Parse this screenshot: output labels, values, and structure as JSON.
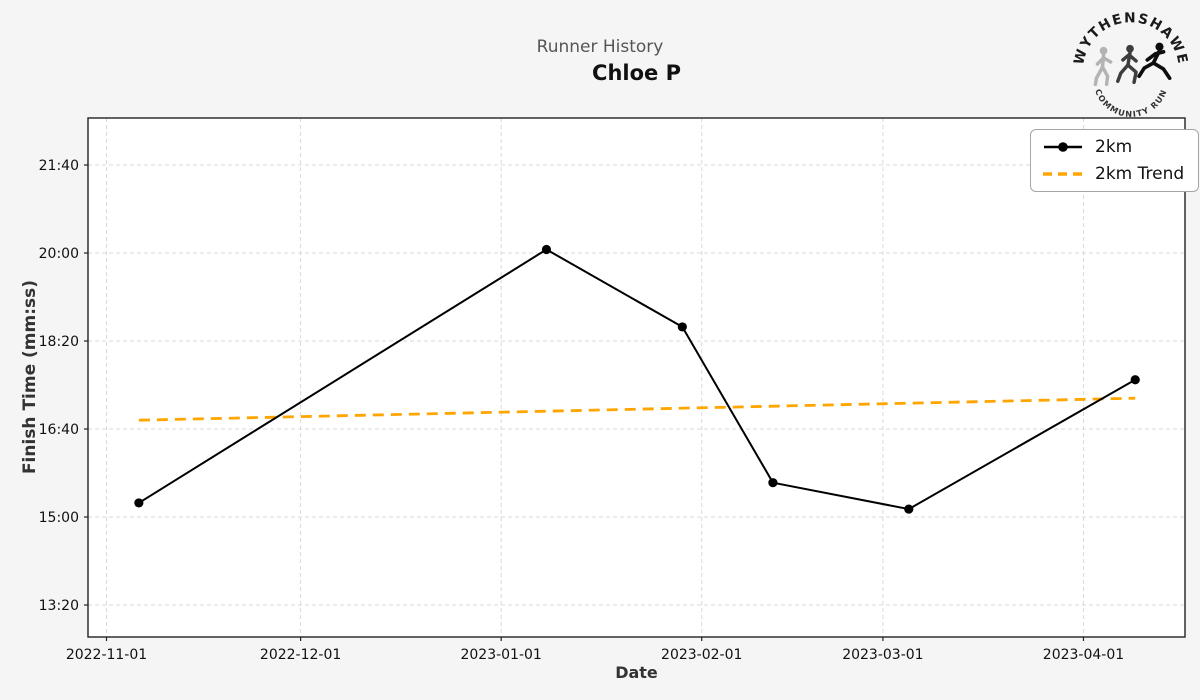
{
  "header": {
    "suptitle": "Runner History",
    "title": "Chloe P"
  },
  "logo": {
    "top_text": "WYTHENSHAWE",
    "bottom_text": "COMMUNITY RUN",
    "runner_colors": [
      "#b3b3b3",
      "#3d3d3d",
      "#0d0d0d"
    ]
  },
  "colors": {
    "figure_bg": "#f5f5f5",
    "plot_bg": "#ffffff",
    "grid": "#d9d9d9",
    "spine": "#222222",
    "series_black": "#000000",
    "trend_orange": "#FFA500"
  },
  "chart_data": {
    "type": "line",
    "title": "Runner History — Chloe P",
    "xlabel": "Date",
    "ylabel": "Finish Time (mm:ss)",
    "grid": "dashed, both axes",
    "legend_position": "upper right",
    "x_ticks": [
      "2022-11-01",
      "2022-12-01",
      "2023-01-01",
      "2023-02-01",
      "2023-03-01",
      "2023-04-01"
    ],
    "y_ticks": [
      "13:20",
      "15:00",
      "16:40",
      "18:20",
      "20:00",
      "21:40"
    ],
    "ylim_mmss": [
      "12:44",
      "22:33"
    ],
    "series": [
      {
        "name": "2km",
        "style": "solid",
        "marker": "circle",
        "color": "#000000",
        "points": [
          {
            "date": "2022-11-06",
            "time": "15:16"
          },
          {
            "date": "2023-01-08",
            "time": "20:04"
          },
          {
            "date": "2023-01-29",
            "time": "18:36"
          },
          {
            "date": "2023-02-12",
            "time": "15:39"
          },
          {
            "date": "2023-03-05",
            "time": "15:09"
          },
          {
            "date": "2023-04-09",
            "time": "17:36"
          }
        ]
      },
      {
        "name": "2km Trend",
        "style": "dashed",
        "marker": "none",
        "color": "#FFA500",
        "points": [
          {
            "date": "2022-11-06",
            "time": "16:50"
          },
          {
            "date": "2023-04-09",
            "time": "17:15"
          }
        ]
      }
    ]
  }
}
